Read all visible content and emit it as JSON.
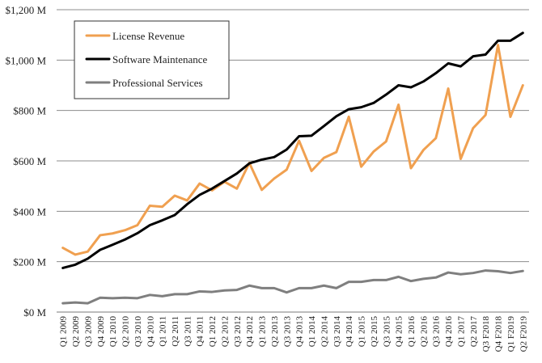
{
  "chart_data": {
    "type": "line",
    "title": "",
    "xlabel": "",
    "ylabel": "",
    "ylim": [
      0,
      1200
    ],
    "yticks": [
      0,
      200,
      400,
      600,
      800,
      1000,
      1200
    ],
    "ytick_labels": [
      "$0 M",
      "$200 M",
      "$400 M",
      "$600 M",
      "$800 M",
      "$1,000 M",
      "$1,200 M"
    ],
    "grid": "horizontal",
    "legend_position": "top-left",
    "categories": [
      "Q1 2009",
      "Q2 2009",
      "Q3 2009",
      "Q4 2009",
      "Q1 2010",
      "Q2 2010",
      "Q3 2010",
      "Q4 2010",
      "Q1 2011",
      "Q2 2011",
      "Q3 2011",
      "Q4 2011",
      "Q1 2012",
      "Q2 2012",
      "Q3 2012",
      "Q4 2012",
      "Q1 2013",
      "Q2 2013",
      "Q3 2013",
      "Q4 2013",
      "Q1 2014",
      "Q2 2014",
      "Q3 2014",
      "Q4 2014",
      "Q1 2015",
      "Q2 2015",
      "Q3 2015",
      "Q4 2015",
      "Q1 2016",
      "Q2 2016",
      "Q3 2016",
      "Q4 2016",
      "Q1 2017",
      "Q2 2017",
      "Q3 F2018",
      "Q4 F2018",
      "Q1 F2019",
      "Q2 F2019"
    ],
    "series": [
      {
        "name": "License Revenue",
        "color": "#f0a050",
        "values": [
          255,
          228,
          240,
          305,
          312,
          325,
          345,
          422,
          418,
          462,
          443,
          510,
          483,
          517,
          490,
          592,
          485,
          530,
          565,
          680,
          560,
          612,
          635,
          775,
          577,
          637,
          677,
          823,
          571,
          643,
          690,
          887,
          608,
          730,
          782,
          1060,
          775,
          900
        ]
      },
      {
        "name": "Software Maintenance",
        "color": "#000000",
        "values": [
          175,
          188,
          212,
          247,
          267,
          288,
          313,
          345,
          364,
          385,
          428,
          465,
          490,
          520,
          550,
          590,
          605,
          615,
          645,
          698,
          700,
          738,
          777,
          805,
          813,
          830,
          863,
          900,
          892,
          915,
          948,
          987,
          975,
          1015,
          1022,
          1077,
          1077,
          1108
        ]
      },
      {
        "name": "Professional Services",
        "color": "#7f7f7f",
        "values": [
          35,
          38,
          35,
          57,
          55,
          57,
          55,
          68,
          63,
          71,
          71,
          82,
          80,
          86,
          88,
          105,
          95,
          95,
          78,
          95,
          95,
          105,
          95,
          120,
          120,
          127,
          127,
          140,
          123,
          132,
          137,
          157,
          150,
          155,
          165,
          162,
          155,
          163
        ]
      }
    ]
  }
}
